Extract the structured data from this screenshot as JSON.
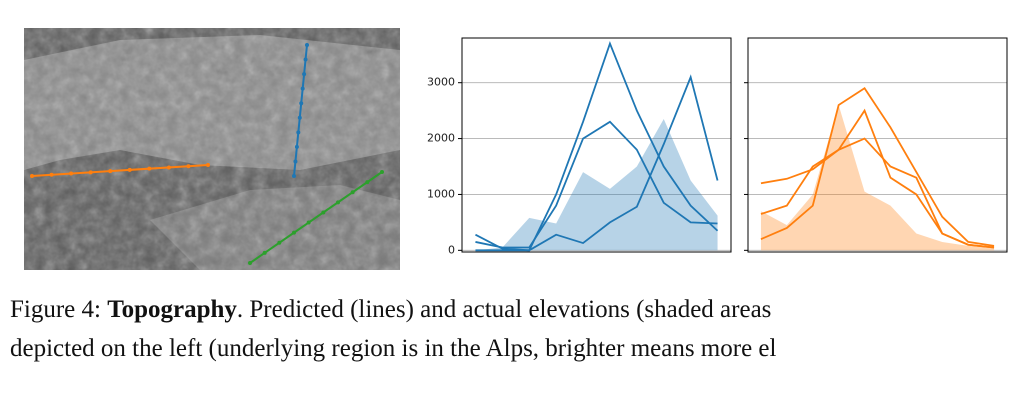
{
  "chart_data": [
    {
      "type": "line",
      "x": [
        0,
        1,
        2,
        3,
        4,
        5,
        6,
        7,
        8,
        9
      ],
      "xlim": [
        -0.5,
        9.5
      ],
      "ylim": [
        -30,
        3800
      ],
      "yticks": [
        0,
        1000,
        2000,
        3000
      ],
      "show_tick_labels": true,
      "grid": true,
      "series": [
        {
          "style": "area",
          "color": "#1f77b4",
          "values": [
            0,
            50,
            580,
            480,
            1400,
            1100,
            1500,
            2350,
            1250,
            620
          ]
        },
        {
          "style": "line",
          "color": "#1f77b4",
          "values": [
            280,
            30,
            0,
            1000,
            2300,
            3700,
            2500,
            1500,
            800,
            350
          ]
        },
        {
          "style": "line",
          "color": "#1f77b4",
          "values": [
            150,
            50,
            50,
            800,
            2000,
            2300,
            1800,
            850,
            500,
            480
          ]
        },
        {
          "style": "line",
          "color": "#1f77b4",
          "values": [
            0,
            0,
            0,
            280,
            130,
            500,
            780,
            1900,
            3100,
            1250
          ]
        }
      ]
    },
    {
      "type": "line",
      "x": [
        0,
        1,
        2,
        3,
        4,
        5,
        6,
        7,
        8,
        9
      ],
      "xlim": [
        -0.5,
        9.5
      ],
      "ylim": [
        -30,
        3800
      ],
      "yticks": [
        0,
        1000,
        2000,
        3000
      ],
      "show_tick_labels": false,
      "grid": true,
      "series": [
        {
          "style": "area",
          "color": "#ff7f0e",
          "values": [
            700,
            450,
            1000,
            2600,
            1050,
            800,
            300,
            150,
            80,
            50
          ]
        },
        {
          "style": "line",
          "color": "#ff7f0e",
          "values": [
            200,
            400,
            800,
            2600,
            2900,
            2200,
            1400,
            600,
            150,
            80
          ]
        },
        {
          "style": "line",
          "color": "#ff7f0e",
          "values": [
            1200,
            1280,
            1450,
            1800,
            2000,
            1500,
            1300,
            300,
            100,
            50
          ]
        },
        {
          "style": "line",
          "color": "#ff7f0e",
          "values": [
            650,
            800,
            1500,
            1800,
            2500,
            1300,
            1000,
            300,
            100,
            50
          ]
        }
      ]
    }
  ],
  "caption": {
    "label": "Figure 4:",
    "title": "Topography",
    "line1": ". Predicted (lines) and actual elevations (shaded areas",
    "line2": "depicted on the left (underlying region is in the Alps, brighter means more el"
  }
}
